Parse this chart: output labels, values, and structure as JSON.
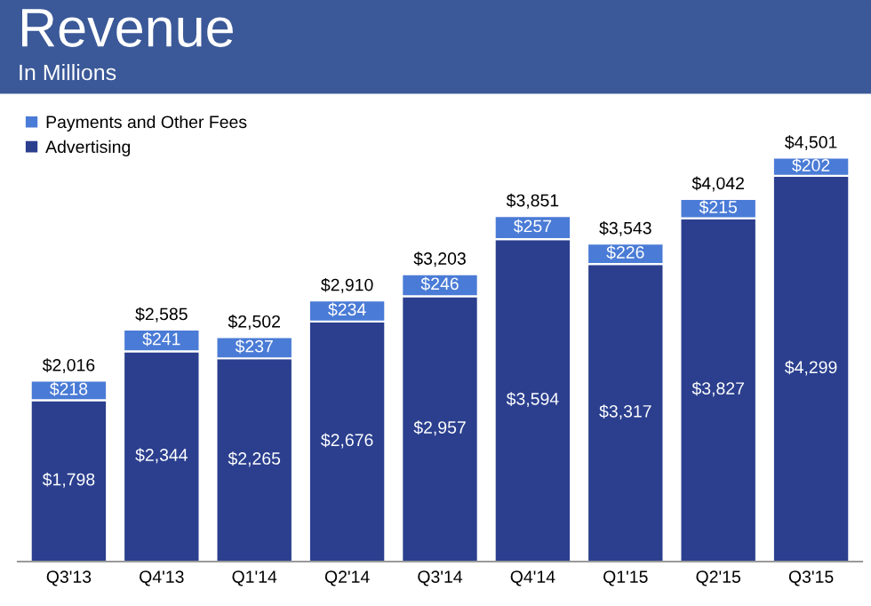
{
  "chart_data": {
    "type": "bar",
    "title": "Revenue",
    "subtitle": "In Millions",
    "stacked": true,
    "categories": [
      "Q3'13",
      "Q4'13",
      "Q1'14",
      "Q2'14",
      "Q3'14",
      "Q4'14",
      "Q1'15",
      "Q2'15",
      "Q3'15"
    ],
    "series": [
      {
        "name": "Advertising",
        "color": "#2b3f8e",
        "values": [
          1798,
          2344,
          2265,
          2676,
          2957,
          3594,
          3317,
          3827,
          4299
        ],
        "value_labels": [
          "$1,798",
          "$2,344",
          "$2,265",
          "$2,676",
          "$2,957",
          "$3,594",
          "$3,317",
          "$3,827",
          "$4,299"
        ]
      },
      {
        "name": "Payments and Other Fees",
        "color": "#4a7bd6",
        "values": [
          218,
          241,
          237,
          234,
          246,
          257,
          226,
          215,
          202
        ],
        "value_labels": [
          "$218",
          "$241",
          "$237",
          "$234",
          "$246",
          "$257",
          "$226",
          "$215",
          "$202"
        ]
      }
    ],
    "totals": [
      "$2,016",
      "$2,585",
      "$2,502",
      "$2,910",
      "$3,203",
      "$3,851",
      "$3,543",
      "$4,042",
      "$4,501"
    ],
    "legend": "top left",
    "grid": false
  }
}
